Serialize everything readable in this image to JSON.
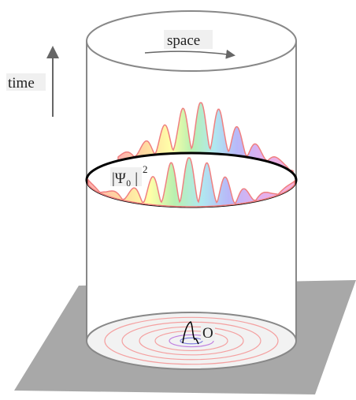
{
  "labels": {
    "space": "space",
    "time": "time",
    "wavefunction": "|Ψ₀ |",
    "exponent": "2",
    "origin": "O"
  }
}
